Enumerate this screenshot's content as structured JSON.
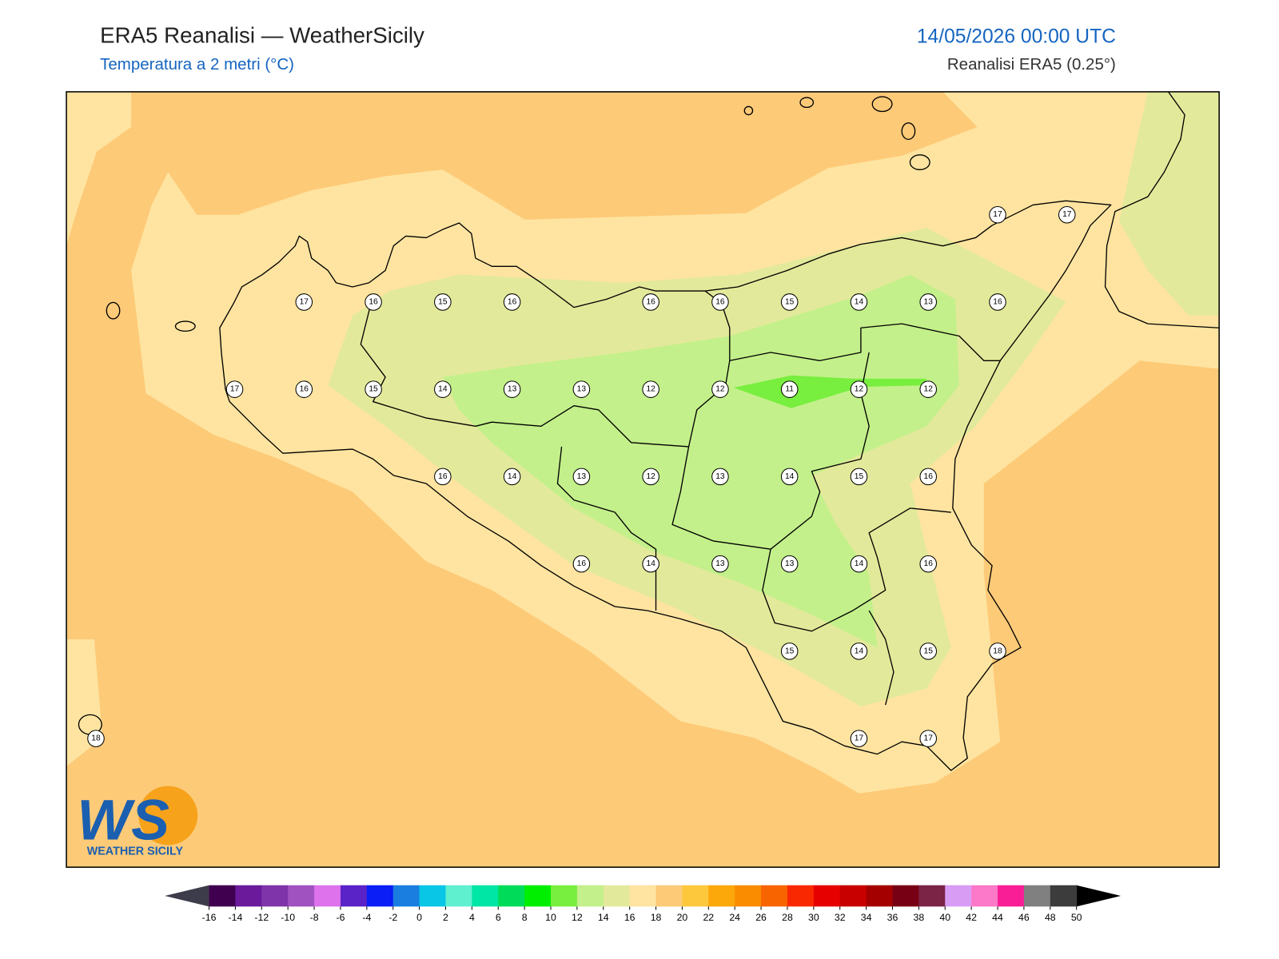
{
  "header": {
    "title": "ERA5 Reanalisi — WeatherSicily",
    "subtitle": "Temperatura a 2 metri (°C)",
    "datetime": "14/05/2026 00:00 UTC",
    "source": "Reanalisi ERA5 (0.25°)"
  },
  "map": {
    "stations": [
      17,
      17,
      17,
      16,
      15,
      16,
      16,
      16,
      15,
      14,
      13,
      16,
      17,
      16,
      15,
      14,
      13,
      13,
      12,
      12,
      11,
      12,
      12,
      16,
      14,
      13,
      12,
      13,
      14,
      15,
      16,
      16,
      14,
      13,
      13,
      14,
      16,
      15,
      14,
      15,
      18,
      18,
      17,
      17
    ]
  },
  "colorbar": {
    "ticks": [
      -16,
      -14,
      -12,
      -10,
      -8,
      -6,
      -4,
      -2,
      0,
      2,
      4,
      6,
      8,
      10,
      12,
      14,
      16,
      18,
      20,
      22,
      24,
      26,
      28,
      30,
      32,
      34,
      36,
      38,
      40,
      42,
      44,
      46,
      48,
      50
    ],
    "colors": [
      "#41004f",
      "#6a1a9a",
      "#7f35a9",
      "#a052c0",
      "#de72ec",
      "#5a23c8",
      "#0a1ef5",
      "#1a7ee0",
      "#0ac6e6",
      "#5ff0d0",
      "#00e6a5",
      "#00dc5a",
      "#00ee00",
      "#78ee3e",
      "#c3f08a",
      "#e3e99a",
      "#fee4a0",
      "#fdca78",
      "#fec83c",
      "#fca70a",
      "#fa8c00",
      "#f86400",
      "#fa2800",
      "#e60000",
      "#c80000",
      "#a50000",
      "#780014",
      "#7b2446",
      "#d89cf5",
      "#fc78c8",
      "#fa1e96",
      "#808080",
      "#3c3c3c"
    ]
  },
  "logo": {
    "mark": "WS",
    "text": "WEATHER SICILY"
  }
}
